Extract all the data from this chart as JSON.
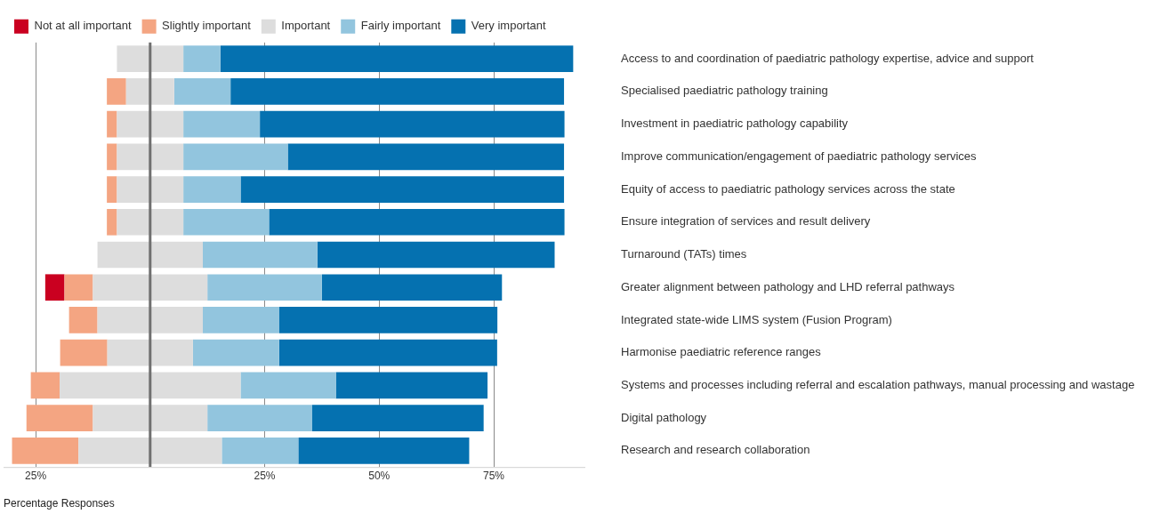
{
  "chart_data": {
    "type": "bar",
    "orientation": "horizontal",
    "stacked": true,
    "xlabel": "Percentage Responses",
    "categories": [
      "Access to and coordination of paediatric pathology expertise, advice and support",
      "Specialised paediatric pathology training",
      "Investment in paediatric pathology capability",
      "Improve communication/engagement of paediatric pathology services",
      "Equity of access to paediatric pathology services across the state",
      "Ensure integration of services and result delivery",
      "Turnaround (TATs) times",
      "Greater alignment between pathology and LHD referral pathways",
      "Integrated state-wide LIMS system (Fusion Program)",
      "Harmonise paediatric reference ranges",
      "Systems and processes including referral and escalation pathways, manual processing and wastage",
      "Digital pathology",
      "Research and research collaboration"
    ],
    "series": [
      {
        "color": "#dddddd",
        "values": [
          -7.25,
          -5.25,
          -7.25,
          -7.25,
          -7.25,
          -7.25,
          -11.5,
          -12.5,
          -11.5,
          -9.35,
          -19.75,
          -12.5,
          -15.65
        ]
      },
      {
        "name": "Slightly important",
        "color": "#f4a582",
        "values": [
          0,
          -4.2,
          -2.2,
          -2.2,
          -2.2,
          -2.2,
          0,
          -6.2,
          -6.2,
          -10.3,
          -6.3,
          -14.5,
          -14.5
        ]
      },
      {
        "name": "Not at all important",
        "color": "#ca0020",
        "values": [
          0,
          0,
          0,
          0,
          0,
          0,
          0,
          -4.2,
          0,
          0,
          0,
          0,
          0
        ]
      },
      {
        "name": "Important",
        "color": "#dddddd",
        "values": [
          7.25,
          5.25,
          7.25,
          7.25,
          7.25,
          7.25,
          11.5,
          12.5,
          11.5,
          9.35,
          19.75,
          12.5,
          15.65
        ]
      },
      {
        "name": "Fairly important",
        "color": "#92c5de",
        "values": [
          8.1,
          12.3,
          16.7,
          22.8,
          12.5,
          18.7,
          25,
          25,
          16.7,
          18.8,
          20.8,
          22.8,
          16.7
        ]
      },
      {
        "name": "Very important",
        "color": "#0571b0",
        "values": [
          77,
          72.8,
          66.5,
          60.3,
          70.6,
          64.5,
          51.8,
          39.3,
          47.6,
          47.6,
          33.1,
          37.5,
          37.3
        ]
      }
    ],
    "xlim": [
      -32,
      95
    ],
    "xticks": [
      {
        "value": -25,
        "label": "25%"
      },
      {
        "value": 25,
        "label": "25%"
      },
      {
        "value": 50,
        "label": "50%"
      },
      {
        "value": 75,
        "label": "75%"
      }
    ],
    "ref_lines": [
      {
        "axis": "x",
        "value": 0,
        "color": "#707070"
      }
    ],
    "grid": "x",
    "legend": "top left"
  }
}
